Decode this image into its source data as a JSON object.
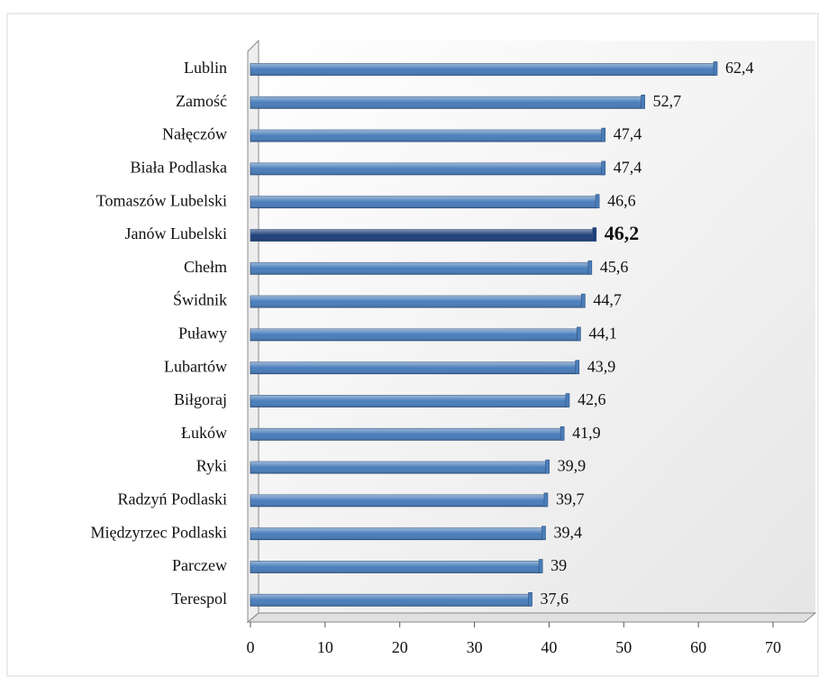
{
  "chart_data": {
    "type": "bar",
    "orientation": "horizontal",
    "categories": [
      "Lublin",
      "Zamość",
      "Nałęczów",
      "Biała Podlaska",
      "Tomaszów Lubelski",
      "Janów Lubelski",
      "Chełm",
      "Świdnik",
      "Puławy",
      "Lubartów",
      "Biłgoraj",
      "Łuków",
      "Ryki",
      "Radzyń Podlaski",
      "Międzyrzec Podlaski",
      "Parczew",
      "Terespol"
    ],
    "values": [
      62.4,
      52.7,
      47.4,
      47.4,
      46.6,
      46.2,
      45.6,
      44.7,
      44.1,
      43.9,
      42.6,
      41.9,
      39.9,
      39.7,
      39.4,
      39,
      37.6
    ],
    "value_labels": [
      "62,4",
      "52,7",
      "47,4",
      "47,4",
      "46,6",
      "46,2",
      "45,6",
      "44,7",
      "44,1",
      "43,9",
      "42,6",
      "41,9",
      "39,9",
      "39,7",
      "39,4",
      "39",
      "37,6"
    ],
    "colors": [
      "#4a7ebb",
      "#4a7ebb",
      "#4a7ebb",
      "#4a7ebb",
      "#4a7ebb",
      "#1f3f7a",
      "#4a7ebb",
      "#4a7ebb",
      "#4a7ebb",
      "#4a7ebb",
      "#4a7ebb",
      "#4a7ebb",
      "#4a7ebb",
      "#4a7ebb",
      "#4a7ebb",
      "#4a7ebb",
      "#4a7ebb"
    ],
    "xlim": [
      0,
      70
    ],
    "xticks": [
      0,
      10,
      20,
      30,
      40,
      50,
      60,
      70
    ]
  }
}
